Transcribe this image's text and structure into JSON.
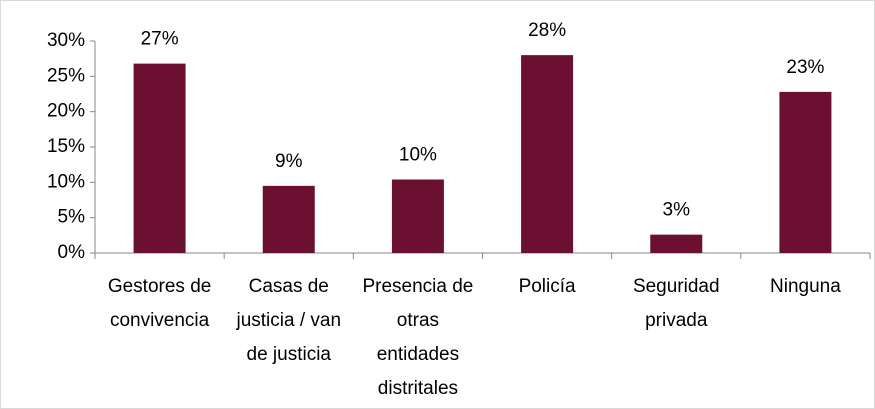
{
  "chart_data": {
    "type": "bar",
    "categories": [
      "Gestores de convivencia",
      "Casas de justicia / van de justicia",
      "Presencia de otras entidades distritales",
      "Policía",
      "Seguridad privada",
      "Ninguna"
    ],
    "values": [
      26.8,
      9.5,
      10.4,
      28.0,
      2.6,
      22.8
    ],
    "value_labels": [
      "27%",
      "9%",
      "10%",
      "28%",
      "3%",
      "23%"
    ],
    "color": "#6b1030",
    "ylim": [
      0,
      30
    ],
    "yticks": [
      {
        "value": 0,
        "label": "0%"
      },
      {
        "value": 5,
        "label": "5%"
      },
      {
        "value": 10,
        "label": "10%"
      },
      {
        "value": 15,
        "label": "15%"
      },
      {
        "value": 20,
        "label": "20%"
      },
      {
        "value": 25,
        "label": "25%"
      },
      {
        "value": 30,
        "label": "30%"
      }
    ],
    "grid": false
  }
}
